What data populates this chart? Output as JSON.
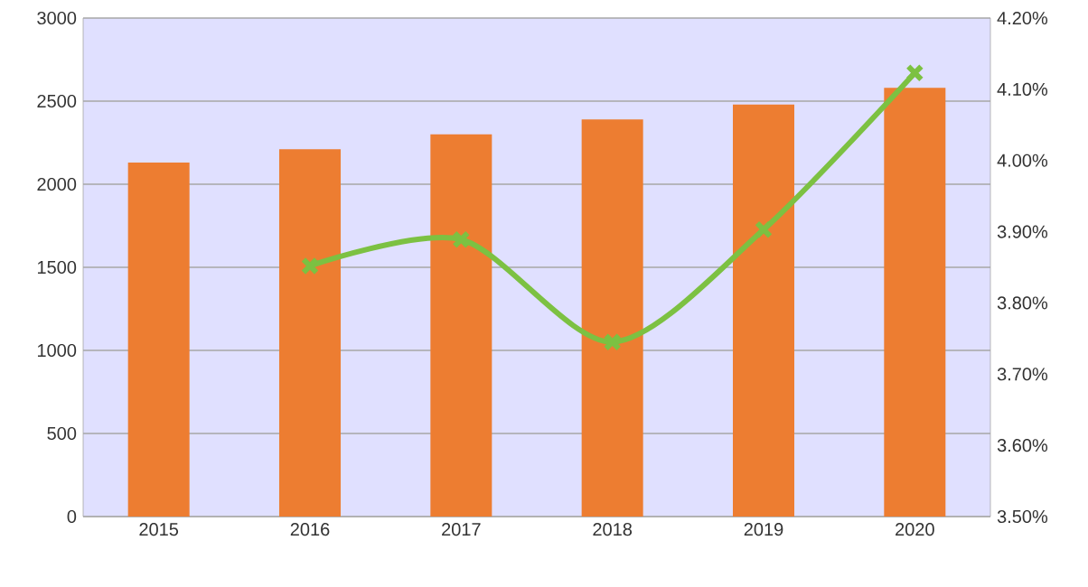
{
  "chart_data": {
    "type": "bar",
    "categories": [
      "2015",
      "2016",
      "2017",
      "2018",
      "2019",
      "2020"
    ],
    "series": [
      {
        "color": "#ed7d31",
        "values": [
          2130,
          2210,
          2300,
          2390,
          2480,
          2580
        ]
      },
      {
        "type": "line",
        "axis": "y2",
        "color": "#7cc142",
        "marker": "cross",
        "values": [
          null,
          3.852,
          3.889,
          3.745,
          3.903,
          4.123
        ]
      }
    ],
    "ylim": [
      0,
      3000
    ],
    "yticks": [
      0,
      500,
      1000,
      1500,
      2000,
      2500,
      3000
    ],
    "y2lim": [
      3.5,
      4.2
    ],
    "y2ticks": [
      {
        "value": 3.5,
        "label": "3.50%"
      },
      {
        "value": 3.6,
        "label": "3.60%"
      },
      {
        "value": 3.7,
        "label": "3.70%"
      },
      {
        "value": 3.8,
        "label": "3.80%"
      },
      {
        "value": 3.9,
        "label": "3.90%"
      },
      {
        "value": 4.0,
        "label": "4.00%"
      },
      {
        "value": 4.1,
        "label": "4.10%"
      },
      {
        "value": 4.2,
        "label": "4.20%"
      }
    ],
    "grid": "y"
  }
}
